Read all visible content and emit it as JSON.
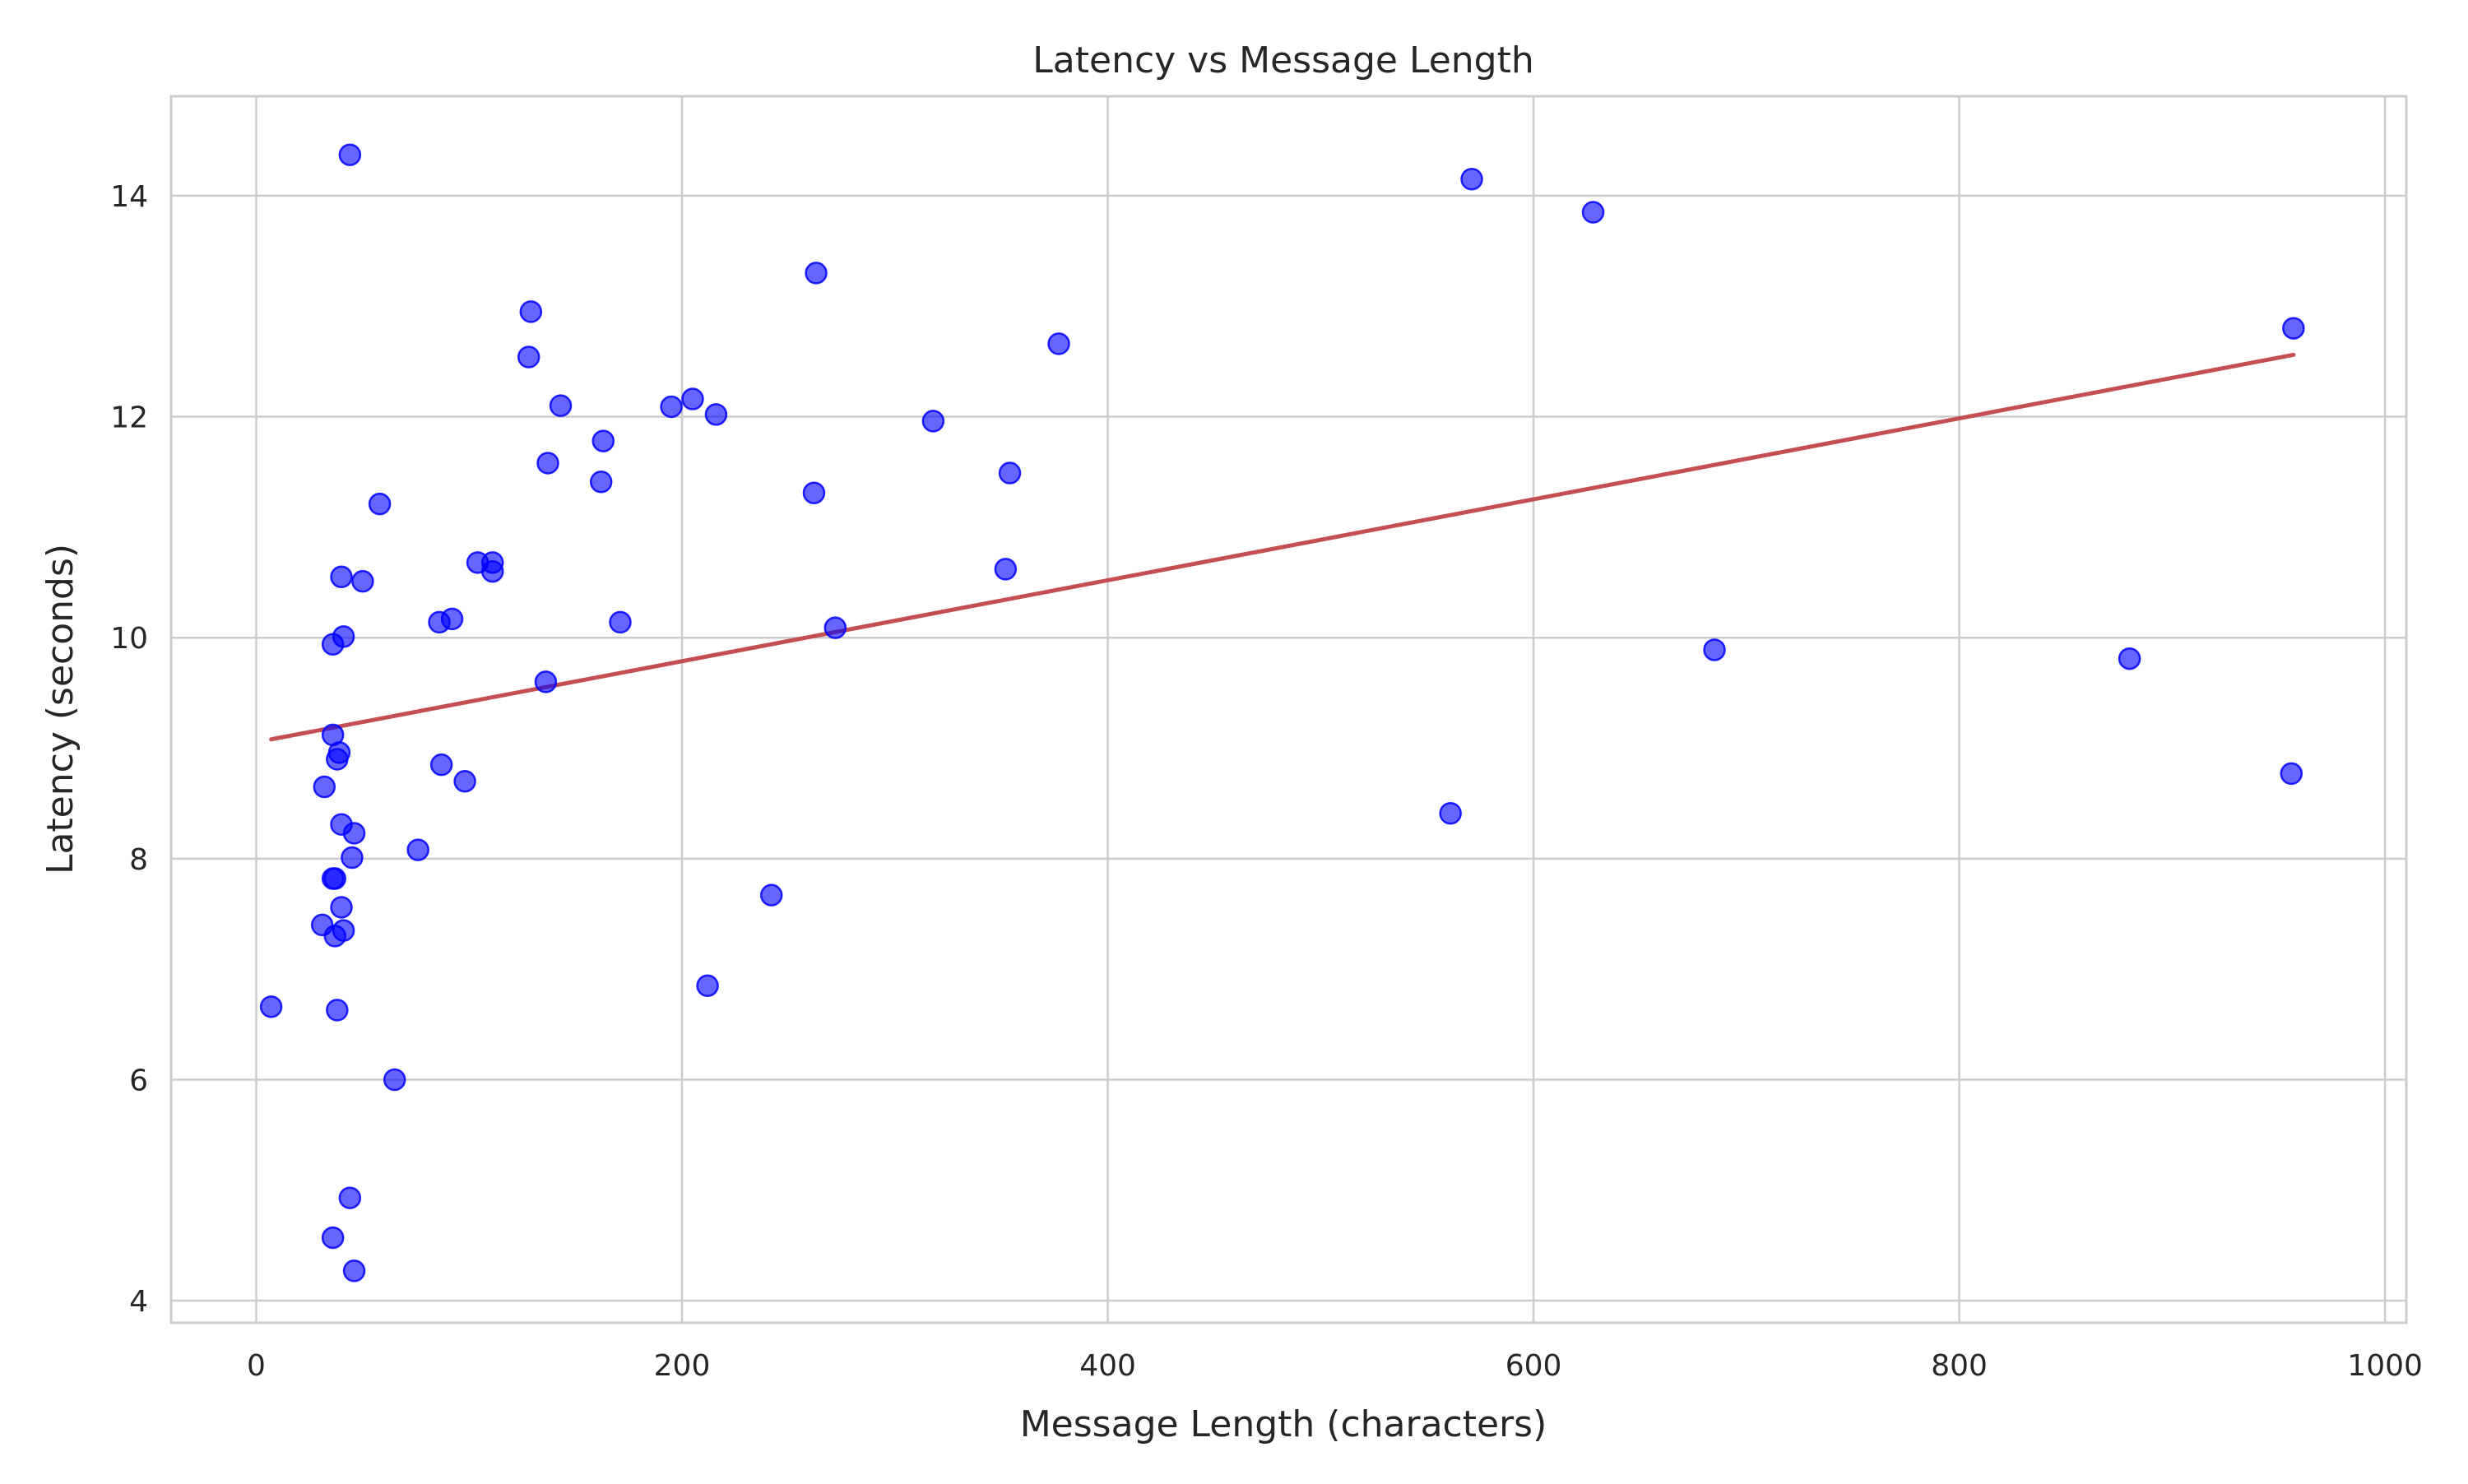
{
  "chart_data": {
    "type": "scatter",
    "title": "Latency vs Message Length",
    "xlabel": "Message Length (characters)",
    "ylabel": "Latency (seconds)",
    "xlim": [
      -40,
      1010
    ],
    "ylim": [
      3.8,
      14.9
    ],
    "xticks": [
      0,
      200,
      400,
      600,
      800,
      1000
    ],
    "yticks": [
      4,
      6,
      8,
      10,
      12,
      14
    ],
    "grid": true,
    "legend": "none",
    "marker_color": "#0000ff",
    "marker_alpha": 0.6,
    "trend_color": "#c44e52",
    "series": [
      {
        "points": [
          [
            44,
            14.37
          ],
          [
            571,
            14.15
          ],
          [
            628,
            13.85
          ],
          [
            263,
            13.3
          ],
          [
            129,
            12.95
          ],
          [
            957,
            12.8
          ],
          [
            377,
            12.66
          ],
          [
            128,
            12.54
          ],
          [
            205,
            12.16
          ],
          [
            143,
            12.1
          ],
          [
            195,
            12.09
          ],
          [
            216,
            12.02
          ],
          [
            318,
            11.96
          ],
          [
            163,
            11.78
          ],
          [
            137,
            11.58
          ],
          [
            354,
            11.49
          ],
          [
            162,
            11.41
          ],
          [
            262,
            11.31
          ],
          [
            58,
            11.21
          ],
          [
            104,
            10.68
          ],
          [
            111,
            10.68
          ],
          [
            352,
            10.62
          ],
          [
            111,
            10.6
          ],
          [
            40,
            10.55
          ],
          [
            50,
            10.51
          ],
          [
            92,
            10.17
          ],
          [
            86,
            10.14
          ],
          [
            171,
            10.14
          ],
          [
            272,
            10.09
          ],
          [
            41,
            10.01
          ],
          [
            36,
            9.94
          ],
          [
            685,
            9.89
          ],
          [
            880,
            9.81
          ],
          [
            136,
            9.6
          ],
          [
            36,
            9.12
          ],
          [
            39,
            8.96
          ],
          [
            38,
            8.9
          ],
          [
            87,
            8.85
          ],
          [
            956,
            8.77
          ],
          [
            98,
            8.7
          ],
          [
            32,
            8.65
          ],
          [
            561,
            8.41
          ],
          [
            40,
            8.31
          ],
          [
            46,
            8.23
          ],
          [
            76,
            8.08
          ],
          [
            45,
            8.01
          ],
          [
            36,
            7.82
          ],
          [
            37,
            7.82
          ],
          [
            242,
            7.67
          ],
          [
            40,
            7.56
          ],
          [
            31,
            7.4
          ],
          [
            41,
            7.35
          ],
          [
            37,
            7.3
          ],
          [
            212,
            6.85
          ],
          [
            7,
            6.66
          ],
          [
            38,
            6.63
          ],
          [
            65,
            6.0
          ],
          [
            44,
            4.93
          ],
          [
            36,
            4.57
          ],
          [
            46,
            4.27
          ]
        ]
      }
    ],
    "trend_line": {
      "x": [
        7,
        957
      ],
      "y": [
        9.08,
        12.56
      ]
    }
  }
}
